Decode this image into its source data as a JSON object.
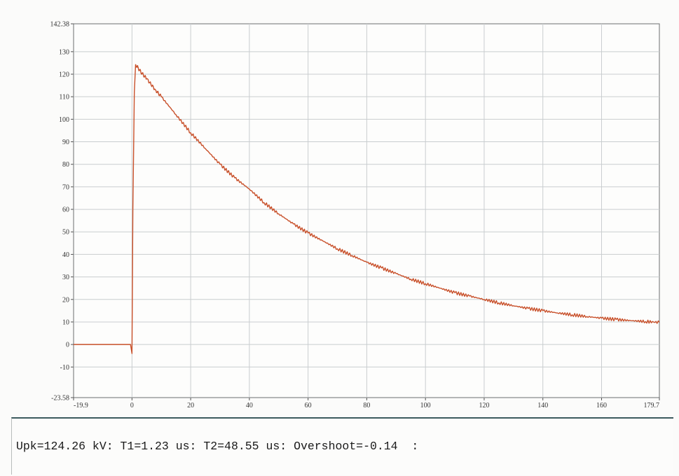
{
  "chart_data": {
    "type": "line",
    "xlim": [
      -19.9,
      179.7
    ],
    "ylim": [
      -23.58,
      142.38
    ],
    "x_ticks": [
      "-19.9",
      "0",
      "20",
      "40",
      "60",
      "80",
      "100",
      "120",
      "140",
      "160",
      "179.7"
    ],
    "y_ticks": [
      "142.38",
      "130",
      "120",
      "110",
      "100",
      "90",
      "80",
      "70",
      "60",
      "50",
      "40",
      "30",
      "20",
      "10",
      "0",
      "-10",
      "-23.58"
    ],
    "grid": true,
    "series": [
      {
        "color": "#c8502a",
        "x": [
          -19.9,
          -10,
          -1,
          -0.5,
          0,
          0.3,
          0.8,
          1.23,
          2,
          3,
          5,
          8,
          10,
          15,
          20,
          25,
          30,
          35,
          40,
          45,
          50,
          55,
          60,
          65,
          70,
          75,
          80,
          85,
          90,
          95,
          100,
          105,
          110,
          115,
          120,
          125,
          130,
          135,
          140,
          145,
          150,
          155,
          160,
          165,
          170,
          175,
          179.7
        ],
        "y": [
          0,
          0,
          0,
          0,
          -4,
          60,
          112,
          124.26,
          123,
          121,
          118,
          113,
          110,
          102,
          94,
          87,
          80,
          74,
          69,
          63,
          58,
          53.5,
          49.5,
          46,
          42.5,
          39.5,
          36.5,
          34,
          31.5,
          29,
          27,
          25,
          23,
          21.5,
          20,
          18.5,
          17.2,
          16,
          15,
          14,
          13.2,
          12.4,
          11.7,
          11.1,
          10.6,
          10.2,
          9.8
        ]
      }
    ]
  },
  "status": {
    "text": "Upk=124.26 kV: T1=1.23 us: T2=48.55 us: Overshoot=-0.14  :"
  }
}
